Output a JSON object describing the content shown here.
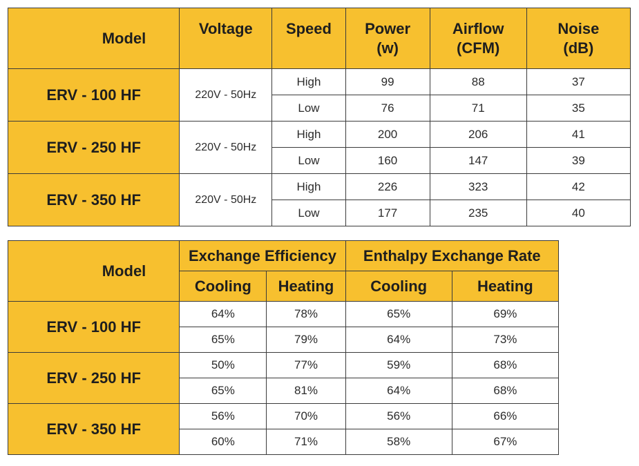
{
  "specs_table": {
    "headers": {
      "model": "Model",
      "voltage": "Voltage",
      "speed": "Speed",
      "power_line1": "Power",
      "power_line2": "(w)",
      "airflow_line1": "Airflow",
      "airflow_line2": "(CFM)",
      "noise_line1": "Noise",
      "noise_line2": "(dB)"
    },
    "rows": [
      {
        "model": "ERV - 100 HF",
        "voltage": "220V - 50Hz",
        "high": {
          "speed": "High",
          "power": "99",
          "airflow": "88",
          "noise": "37"
        },
        "low": {
          "speed": "Low",
          "power": "76",
          "airflow": "71",
          "noise": "35"
        }
      },
      {
        "model": "ERV - 250 HF",
        "voltage": "220V - 50Hz",
        "high": {
          "speed": "High",
          "power": "200",
          "airflow": "206",
          "noise": "41"
        },
        "low": {
          "speed": "Low",
          "power": "160",
          "airflow": "147",
          "noise": "39"
        }
      },
      {
        "model": "ERV - 350 HF",
        "voltage": "220V - 50Hz",
        "high": {
          "speed": "High",
          "power": "226",
          "airflow": "323",
          "noise": "42"
        },
        "low": {
          "speed": "Low",
          "power": "177",
          "airflow": "235",
          "noise": "40"
        }
      }
    ]
  },
  "efficiency_table": {
    "headers": {
      "model": "Model",
      "exchange_efficiency": "Exchange Efficiency",
      "enthalpy_exchange_rate": "Enthalpy Exchange Rate",
      "ee_cooling": "Cooling",
      "ee_heating": "Heating",
      "er_cooling": "Cooling",
      "er_heating": "Heating"
    },
    "rows": [
      {
        "model": "ERV - 100 HF",
        "r1": {
          "ee_cooling": "64%",
          "ee_heating": "78%",
          "er_cooling": "65%",
          "er_heating": "69%"
        },
        "r2": {
          "ee_cooling": "65%",
          "ee_heating": "79%",
          "er_cooling": "64%",
          "er_heating": "73%"
        }
      },
      {
        "model": "ERV - 250 HF",
        "r1": {
          "ee_cooling": "50%",
          "ee_heating": "77%",
          "er_cooling": "59%",
          "er_heating": "68%"
        },
        "r2": {
          "ee_cooling": "65%",
          "ee_heating": "81%",
          "er_cooling": "64%",
          "er_heating": "68%"
        }
      },
      {
        "model": "ERV - 350 HF",
        "r1": {
          "ee_cooling": "56%",
          "ee_heating": "70%",
          "er_cooling": "56%",
          "er_heating": "66%"
        },
        "r2": {
          "ee_cooling": "60%",
          "ee_heating": "71%",
          "er_cooling": "58%",
          "er_heating": "67%"
        }
      }
    ]
  },
  "colors": {
    "header_bg": "#f7c02f",
    "border": "#3a3a3a",
    "cell_bg": "#ffffff"
  }
}
